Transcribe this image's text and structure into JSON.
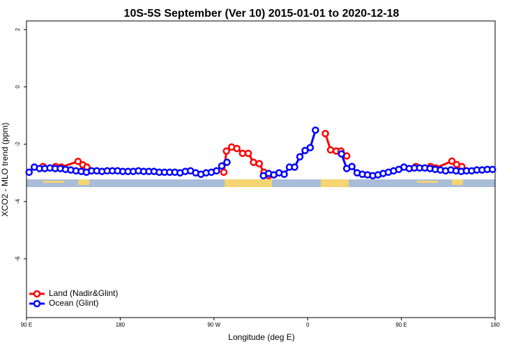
{
  "chart_data": {
    "type": "line",
    "title": "10S-5S September (Ver 10)   2015-01-01 to 2020-12-18",
    "x_label": "Longitude (deg E)",
    "y_label": "XCO2 - MLO trend (ppm)",
    "xlim": [
      90,
      540
    ],
    "xticks": [
      {
        "value": 90,
        "label": "90 E"
      },
      180,
      {
        "value": 270,
        "label": "90 W"
      },
      {
        "value": 360,
        "label": "0"
      },
      {
        "value": 450,
        "label": "90 E"
      },
      {
        "value": 540,
        "label": "180"
      }
    ],
    "ylim": [
      -8.05,
      2.3
    ],
    "yticks": [
      2,
      0,
      -2,
      -4,
      -6
    ],
    "legend": "bottom-left",
    "series": [
      {
        "name": "Land (Nadir&Glint)",
        "color": "#ff0000",
        "x": [
          106,
          118,
          123.5,
          139.5,
          144,
          148,
          200,
          279.5,
          282,
          287,
          292,
          297.5,
          303,
          308,
          313.5,
          318,
          322.5,
          350,
          377,
          382,
          387.5,
          392,
          397.5,
          430,
          464,
          478,
          483,
          498.5,
          503,
          508
        ],
        "values": [
          -2.78,
          -2.78,
          -2.8,
          -2.6,
          -2.72,
          -2.8,
          null,
          -2.98,
          -2.24,
          -2.1,
          -2.15,
          -2.32,
          -2.32,
          -2.63,
          -2.68,
          -2.98,
          -3.1,
          null,
          -1.63,
          -2.2,
          -2.24,
          -2.24,
          -2.41,
          null,
          -2.78,
          -2.78,
          -2.83,
          -2.59,
          -2.71,
          -2.78
        ]
      },
      {
        "name": "Ocean (Glint)",
        "color": "#0000ff",
        "x": [
          92.5,
          97.5,
          102.5,
          107.5,
          112.5,
          117.5,
          122.5,
          127.5,
          132.5,
          137.5,
          142.5,
          147.5,
          152.5,
          157.5,
          162.5,
          167.5,
          172.5,
          177.5,
          182.5,
          187.5,
          192.5,
          197.5,
          202.5,
          207.5,
          212.5,
          217.5,
          222.5,
          227.5,
          232.5,
          237.5,
          242.5,
          247.5,
          252.5,
          257.5,
          262.5,
          267.5,
          272.5,
          277.5,
          282.5,
          300,
          317.5,
          322.5,
          327.5,
          332.5,
          337.5,
          342.5,
          347.5,
          352.5,
          357.5,
          362.5,
          367.5,
          380,
          392.5,
          397.5,
          402.5,
          407.5,
          412.5,
          417.5,
          422.5,
          427.5,
          432.5,
          437.5,
          442.5,
          447.5,
          452.5,
          457.5,
          462.5,
          467.5,
          472.5,
          477.5,
          482.5,
          487.5,
          492.5,
          497.5,
          502.5,
          507.5,
          512.5,
          517.5,
          522.5,
          527.5,
          532.5,
          537.5
        ],
        "values": [
          -2.98,
          -2.8,
          -2.85,
          -2.85,
          -2.83,
          -2.85,
          -2.85,
          -2.88,
          -2.9,
          -2.93,
          -2.95,
          -2.98,
          -2.93,
          -2.93,
          -2.95,
          -2.93,
          -2.93,
          -2.93,
          -2.95,
          -2.95,
          -2.95,
          -2.93,
          -2.95,
          -2.95,
          -2.95,
          -2.98,
          -2.98,
          -2.98,
          -2.98,
          -3.0,
          -2.95,
          -2.93,
          -3.0,
          -3.05,
          -3.0,
          -2.98,
          -2.93,
          -2.76,
          -2.63,
          null,
          -3.1,
          -3.02,
          -3.07,
          -3.0,
          -3.05,
          -2.8,
          -2.8,
          -2.44,
          -2.22,
          -2.12,
          -1.51,
          null,
          -2.34,
          -2.85,
          -2.78,
          -3.0,
          -3.05,
          -3.07,
          -3.1,
          -3.07,
          -3.02,
          -2.98,
          -2.93,
          -2.88,
          -2.8,
          -2.85,
          -2.83,
          -2.83,
          -2.83,
          -2.85,
          -2.88,
          -2.9,
          -2.93,
          -2.9,
          -2.93,
          -2.95,
          -2.93,
          -2.93,
          -2.9,
          -2.9,
          -2.88,
          -2.88
        ]
      }
    ]
  }
}
